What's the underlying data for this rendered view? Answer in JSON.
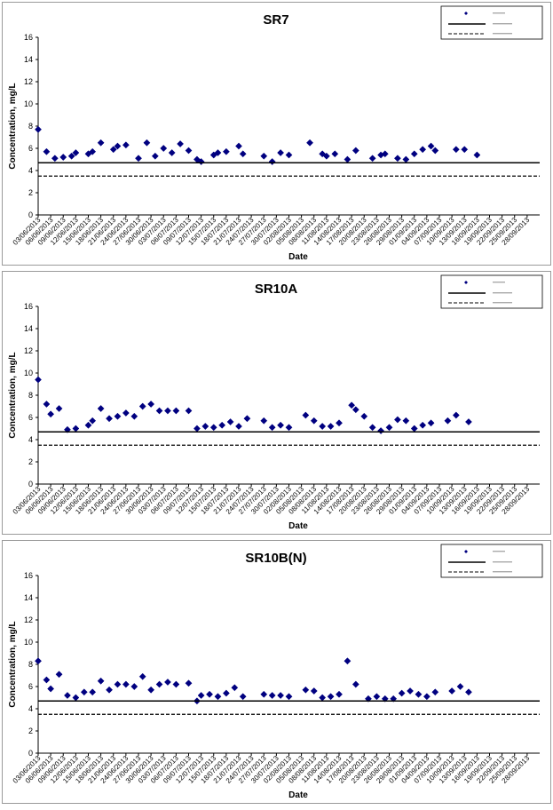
{
  "chart_data": [
    {
      "type": "scatter",
      "title": "SR7",
      "xlabel": "Date",
      "ylabel": "Concentration, mg/L",
      "ylim": [
        0,
        16
      ],
      "yticks": [
        "0",
        "2",
        "4",
        "6",
        "8",
        "10",
        "12",
        "14",
        "16"
      ],
      "xlim": [
        "03/06/2013",
        "01/10/2013"
      ],
      "xticks": [
        "03/06/2013",
        "06/06/2013",
        "09/06/2013",
        "12/06/2013",
        "15/06/2013",
        "18/06/2013",
        "21/06/2013",
        "24/06/2013",
        "27/06/2013",
        "30/06/2013",
        "03/07/2013",
        "06/07/2013",
        "09/07/2013",
        "12/07/2013",
        "15/07/2013",
        "18/07/2013",
        "21/07/2013",
        "24/07/2013",
        "27/07/2013",
        "30/07/2013",
        "02/08/2013",
        "05/08/2013",
        "08/08/2013",
        "11/08/2013",
        "14/08/2013",
        "17/08/2013",
        "20/08/2013",
        "23/08/2013",
        "26/08/2013",
        "29/08/2013",
        "01/09/2013",
        "04/09/2013",
        "07/09/2013",
        "10/09/2013",
        "13/09/2013",
        "16/09/2013",
        "19/09/2013",
        "22/09/2013",
        "25/09/2013",
        "28/09/2013"
      ],
      "legend_position": "top-right",
      "series": [
        {
          "color": "#000080",
          "marker": "diamond",
          "points": [
            [
              "03/06/2013",
              7.7
            ],
            [
              "05/06/2013",
              5.7
            ],
            [
              "07/06/2013",
              5.1
            ],
            [
              "09/06/2013",
              5.2
            ],
            [
              "11/06/2013",
              5.3
            ],
            [
              "12/06/2013",
              5.6
            ],
            [
              "15/06/2013",
              5.5
            ],
            [
              "16/06/2013",
              5.7
            ],
            [
              "18/06/2013",
              6.5
            ],
            [
              "21/06/2013",
              5.9
            ],
            [
              "22/06/2013",
              6.2
            ],
            [
              "24/06/2013",
              6.3
            ],
            [
              "27/06/2013",
              5.1
            ],
            [
              "29/06/2013",
              6.5
            ],
            [
              "01/07/2013",
              5.3
            ],
            [
              "03/07/2013",
              6.0
            ],
            [
              "05/07/2013",
              5.6
            ],
            [
              "07/07/2013",
              6.4
            ],
            [
              "09/07/2013",
              5.8
            ],
            [
              "11/07/2013",
              5.0
            ],
            [
              "12/07/2013",
              4.8
            ],
            [
              "15/07/2013",
              5.4
            ],
            [
              "16/07/2013",
              5.6
            ],
            [
              "18/07/2013",
              5.7
            ],
            [
              "21/07/2013",
              6.2
            ],
            [
              "22/07/2013",
              5.5
            ],
            [
              "27/07/2013",
              5.3
            ],
            [
              "29/07/2013",
              4.8
            ],
            [
              "31/07/2013",
              5.6
            ],
            [
              "02/08/2013",
              5.4
            ],
            [
              "07/08/2013",
              6.5
            ],
            [
              "10/08/2013",
              5.5
            ],
            [
              "11/08/2013",
              5.3
            ],
            [
              "13/08/2013",
              5.5
            ],
            [
              "16/08/2013",
              5.0
            ],
            [
              "18/08/2013",
              5.8
            ],
            [
              "22/08/2013",
              5.1
            ],
            [
              "24/08/2013",
              5.4
            ],
            [
              "25/08/2013",
              5.5
            ],
            [
              "28/08/2013",
              5.1
            ],
            [
              "30/08/2013",
              5.0
            ],
            [
              "01/09/2013",
              5.5
            ],
            [
              "03/09/2013",
              5.9
            ],
            [
              "05/09/2013",
              6.2
            ],
            [
              "06/09/2013",
              5.8
            ],
            [
              "11/09/2013",
              5.9
            ],
            [
              "13/09/2013",
              5.9
            ],
            [
              "16/09/2013",
              5.4
            ]
          ]
        },
        {
          "style": "solid",
          "color": "#000000",
          "value": 4.7
        },
        {
          "style": "dashed",
          "color": "#000000",
          "value": 3.5
        }
      ]
    },
    {
      "type": "scatter",
      "title": "SR10A",
      "xlabel": "Date",
      "ylabel": "Concentration, mg/L",
      "ylim": [
        0,
        16
      ],
      "yticks": [
        "0",
        "2",
        "4",
        "6",
        "8",
        "10",
        "12",
        "14",
        "16"
      ],
      "xlim": [
        "03/06/2013",
        "01/10/2013"
      ],
      "xticks": [
        "03/06/2013",
        "06/06/2013",
        "09/06/2013",
        "12/06/2013",
        "15/06/2013",
        "18/06/2013",
        "21/06/2013",
        "24/06/2013",
        "27/06/2013",
        "30/06/2013",
        "03/07/2013",
        "06/07/2013",
        "09/07/2013",
        "12/07/2013",
        "15/07/2013",
        "18/07/2013",
        "21/07/2013",
        "24/07/2013",
        "27/07/2013",
        "30/07/2013",
        "02/08/2013",
        "05/08/2013",
        "08/08/2013",
        "11/08/2013",
        "14/08/2013",
        "17/08/2013",
        "20/08/2013",
        "23/08/2013",
        "26/08/2013",
        "29/08/2013",
        "01/09/2013",
        "04/09/2013",
        "07/09/2013",
        "10/09/2013",
        "13/09/2013",
        "16/09/2013",
        "19/09/2013",
        "22/09/2013",
        "25/09/2013",
        "28/09/2013"
      ],
      "legend_position": "top-right",
      "series": [
        {
          "color": "#000080",
          "marker": "diamond",
          "points": [
            [
              "03/06/2013",
              9.4
            ],
            [
              "05/06/2013",
              7.2
            ],
            [
              "06/06/2013",
              6.3
            ],
            [
              "08/06/2013",
              6.8
            ],
            [
              "10/06/2013",
              4.9
            ],
            [
              "12/06/2013",
              5.0
            ],
            [
              "15/06/2013",
              5.3
            ],
            [
              "16/06/2013",
              5.7
            ],
            [
              "18/06/2013",
              6.8
            ],
            [
              "20/06/2013",
              5.9
            ],
            [
              "22/06/2013",
              6.1
            ],
            [
              "24/06/2013",
              6.4
            ],
            [
              "26/06/2013",
              6.1
            ],
            [
              "28/06/2013",
              7.0
            ],
            [
              "30/06/2013",
              7.2
            ],
            [
              "02/07/2013",
              6.6
            ],
            [
              "04/07/2013",
              6.6
            ],
            [
              "06/07/2013",
              6.6
            ],
            [
              "09/07/2013",
              6.6
            ],
            [
              "11/07/2013",
              5.0
            ],
            [
              "13/07/2013",
              5.2
            ],
            [
              "15/07/2013",
              5.1
            ],
            [
              "17/07/2013",
              5.3
            ],
            [
              "19/07/2013",
              5.6
            ],
            [
              "21/07/2013",
              5.2
            ],
            [
              "23/07/2013",
              5.9
            ],
            [
              "27/07/2013",
              5.7
            ],
            [
              "29/07/2013",
              5.1
            ],
            [
              "31/07/2013",
              5.3
            ],
            [
              "02/08/2013",
              5.1
            ],
            [
              "06/08/2013",
              6.2
            ],
            [
              "08/08/2013",
              5.7
            ],
            [
              "10/08/2013",
              5.2
            ],
            [
              "12/08/2013",
              5.2
            ],
            [
              "14/08/2013",
              5.5
            ],
            [
              "17/08/2013",
              7.1
            ],
            [
              "18/08/2013",
              6.7
            ],
            [
              "20/08/2013",
              6.1
            ],
            [
              "22/08/2013",
              5.1
            ],
            [
              "24/08/2013",
              4.8
            ],
            [
              "26/08/2013",
              5.1
            ],
            [
              "28/08/2013",
              5.8
            ],
            [
              "30/08/2013",
              5.7
            ],
            [
              "01/09/2013",
              5.0
            ],
            [
              "03/09/2013",
              5.3
            ],
            [
              "05/09/2013",
              5.5
            ],
            [
              "09/09/2013",
              5.7
            ],
            [
              "11/09/2013",
              6.2
            ],
            [
              "14/09/2013",
              5.6
            ]
          ]
        },
        {
          "style": "solid",
          "color": "#000000",
          "value": 4.7
        },
        {
          "style": "dashed",
          "color": "#000000",
          "value": 3.5
        }
      ]
    },
    {
      "type": "scatter",
      "title": "SR10B(N)",
      "xlabel": "Date",
      "ylabel": "Concentration, mg/L",
      "ylim": [
        0,
        16
      ],
      "yticks": [
        "0",
        "2",
        "4",
        "6",
        "8",
        "10",
        "12",
        "14",
        "16"
      ],
      "xlim": [
        "03/06/2013",
        "01/10/2013"
      ],
      "xticks": [
        "03/06/2013",
        "06/06/2013",
        "09/06/2013",
        "12/06/2013",
        "15/06/2013",
        "18/06/2013",
        "21/06/2013",
        "24/06/2013",
        "27/06/2013",
        "30/06/2013",
        "03/07/2013",
        "06/07/2013",
        "09/07/2013",
        "12/07/2013",
        "15/07/2013",
        "18/07/2013",
        "21/07/2013",
        "24/07/2013",
        "27/07/2013",
        "30/07/2013",
        "02/08/2013",
        "05/08/2013",
        "08/08/2013",
        "11/08/2013",
        "14/08/2013",
        "17/08/2013",
        "20/08/2013",
        "23/08/2013",
        "26/08/2013",
        "29/08/2013",
        "01/09/2013",
        "04/09/2013",
        "07/09/2013",
        "10/09/2013",
        "13/09/2013",
        "16/09/2013",
        "19/09/2013",
        "22/09/2013",
        "25/09/2013",
        "28/09/2013"
      ],
      "legend_position": "top-right",
      "series": [
        {
          "color": "#000080",
          "marker": "diamond",
          "points": [
            [
              "03/06/2013",
              8.3
            ],
            [
              "05/06/2013",
              6.6
            ],
            [
              "06/06/2013",
              5.8
            ],
            [
              "08/06/2013",
              7.1
            ],
            [
              "10/06/2013",
              5.2
            ],
            [
              "12/06/2013",
              5.0
            ],
            [
              "14/06/2013",
              5.5
            ],
            [
              "16/06/2013",
              5.5
            ],
            [
              "18/06/2013",
              6.5
            ],
            [
              "20/06/2013",
              5.7
            ],
            [
              "22/06/2013",
              6.2
            ],
            [
              "24/06/2013",
              6.2
            ],
            [
              "26/06/2013",
              6.0
            ],
            [
              "28/06/2013",
              6.9
            ],
            [
              "30/06/2013",
              5.7
            ],
            [
              "02/07/2013",
              6.2
            ],
            [
              "04/07/2013",
              6.4
            ],
            [
              "06/07/2013",
              6.2
            ],
            [
              "09/07/2013",
              6.3
            ],
            [
              "11/07/2013",
              4.7
            ],
            [
              "12/07/2013",
              5.2
            ],
            [
              "14/07/2013",
              5.3
            ],
            [
              "16/07/2013",
              5.1
            ],
            [
              "18/07/2013",
              5.4
            ],
            [
              "20/07/2013",
              5.9
            ],
            [
              "22/07/2013",
              5.1
            ],
            [
              "27/07/2013",
              5.3
            ],
            [
              "29/07/2013",
              5.2
            ],
            [
              "31/07/2013",
              5.2
            ],
            [
              "02/08/2013",
              5.1
            ],
            [
              "06/08/2013",
              5.7
            ],
            [
              "08/08/2013",
              5.6
            ],
            [
              "10/08/2013",
              5.0
            ],
            [
              "12/08/2013",
              5.1
            ],
            [
              "14/08/2013",
              5.3
            ],
            [
              "16/08/2013",
              8.3
            ],
            [
              "18/08/2013",
              6.2
            ],
            [
              "21/08/2013",
              4.9
            ],
            [
              "23/08/2013",
              5.1
            ],
            [
              "25/08/2013",
              4.9
            ],
            [
              "27/08/2013",
              4.9
            ],
            [
              "29/08/2013",
              5.4
            ],
            [
              "31/08/2013",
              5.6
            ],
            [
              "02/09/2013",
              5.3
            ],
            [
              "04/09/2013",
              5.1
            ],
            [
              "06/09/2013",
              5.5
            ],
            [
              "10/09/2013",
              5.6
            ],
            [
              "12/09/2013",
              6.0
            ],
            [
              "14/09/2013",
              5.5
            ]
          ]
        },
        {
          "style": "solid",
          "color": "#000000",
          "value": 4.7
        },
        {
          "style": "dashed",
          "color": "#000000",
          "value": 3.5
        }
      ]
    }
  ]
}
